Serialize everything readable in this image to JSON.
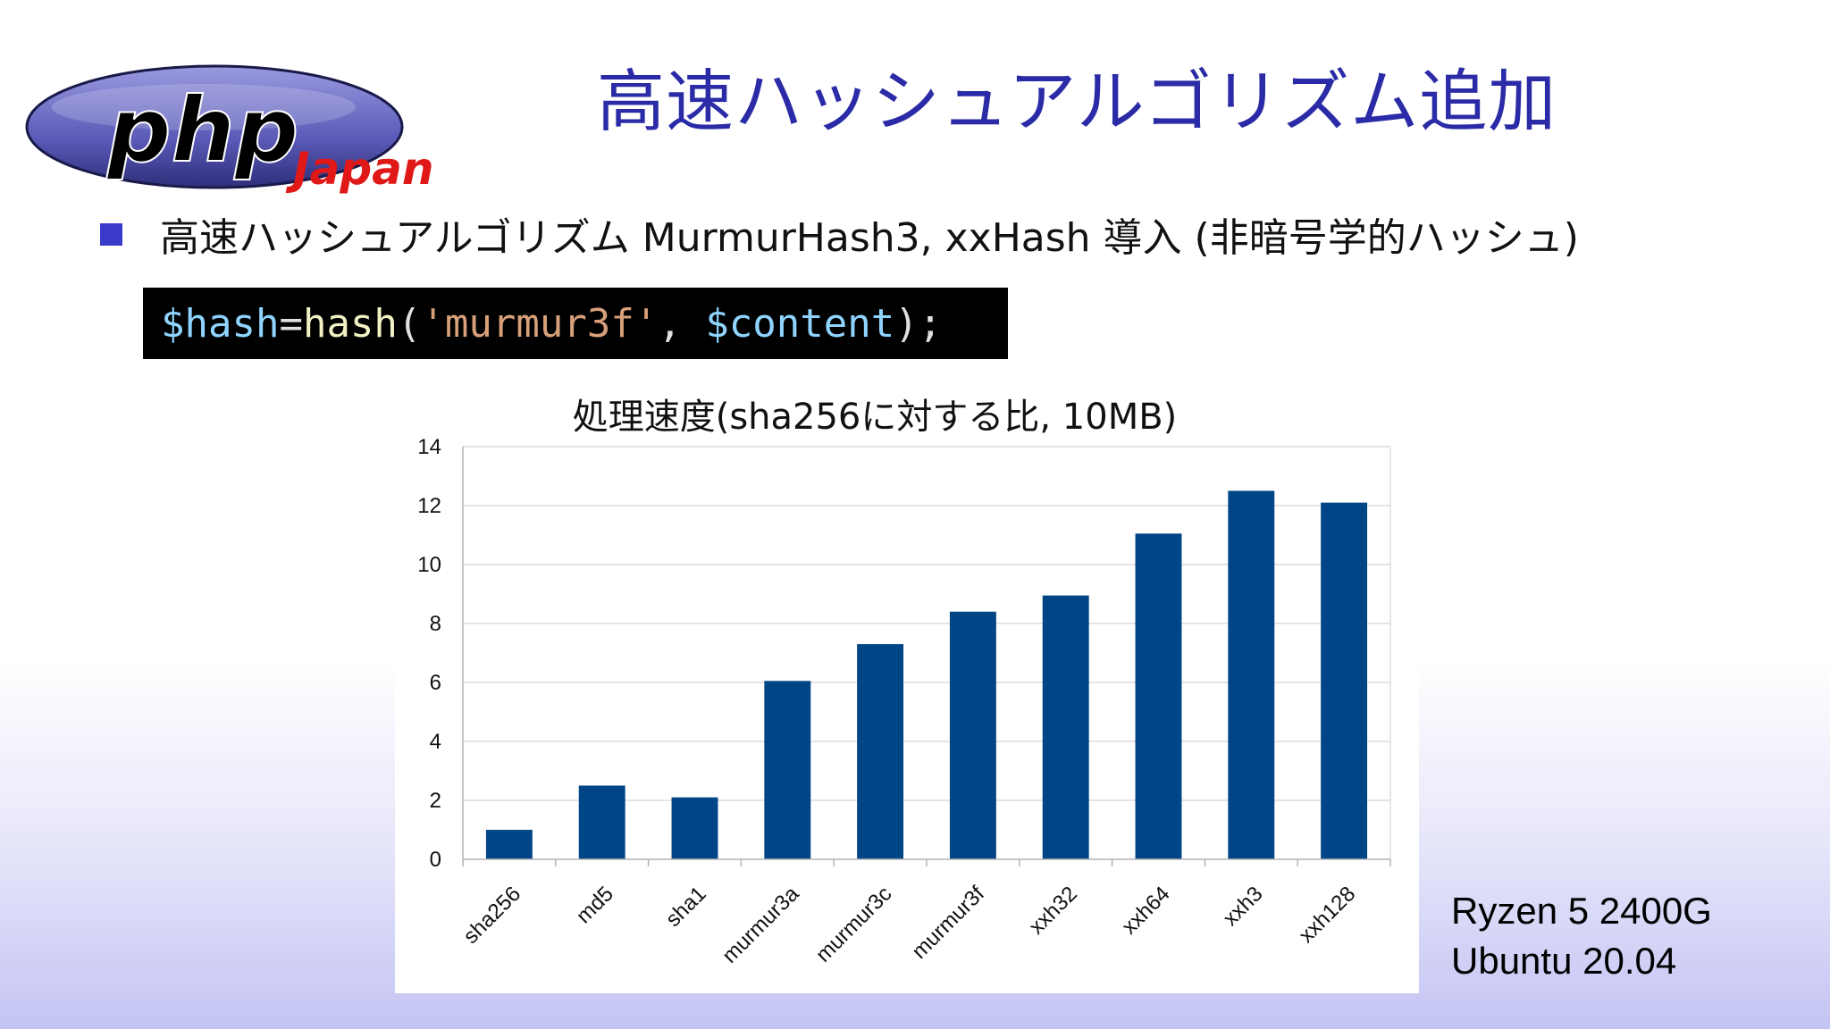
{
  "slide": {
    "title": "高速ハッシュアルゴリズム追加",
    "bullet": "高速ハッシュアルゴリズム MurmurHash3, xxHash 導入 (非暗号学的ハッシュ)",
    "code": {
      "var1": "$hash",
      "op": "=",
      "fn": "hash",
      "open": "(",
      "str": "'murmur3f'",
      "sep": ", ",
      "var2": "$content",
      "close": ");"
    },
    "spec": [
      "Ryzen 5 2400G",
      "Ubuntu 20.04"
    ]
  },
  "logo": {
    "main": "php",
    "sub": "Japan"
  },
  "colors": {
    "title": "#2b2ba8",
    "bar": "#004586",
    "bullet": "#3a3ac8"
  },
  "chart_data": {
    "type": "bar",
    "title": "処理速度(sha256に対する比, 10MB)",
    "categories": [
      "sha256",
      "md5",
      "sha1",
      "murmur3a",
      "murmur3c",
      "murmur3f",
      "xxh32",
      "xxh64",
      "xxh3",
      "xxh128"
    ],
    "values": [
      1.0,
      2.5,
      2.1,
      6.05,
      7.3,
      8.4,
      8.95,
      11.05,
      12.5,
      12.1
    ],
    "ylim": [
      0,
      14
    ],
    "yticks": [
      0,
      2,
      4,
      6,
      8,
      10,
      12,
      14
    ],
    "grid": true,
    "xlabel": "",
    "ylabel": ""
  }
}
